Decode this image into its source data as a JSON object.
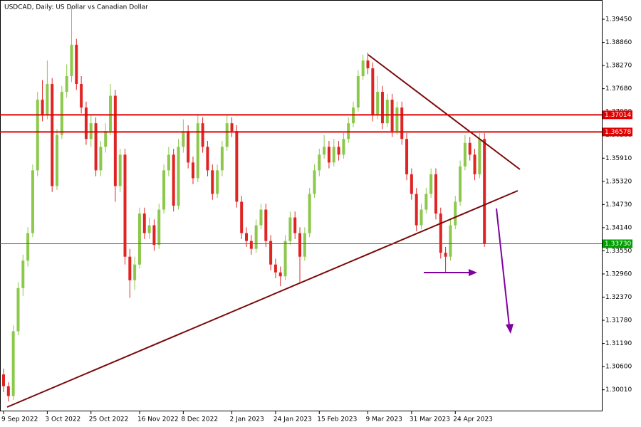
{
  "chart_data": {
    "type": "candlestick",
    "title": "USDCAD, Daily:  US Dollar vs Canadian Dollar",
    "up_color": "#8cc84b",
    "down_color": "#e02424",
    "ylim": [
      1.2946,
      1.3994
    ],
    "yticks": [
      {
        "value": 1.3945,
        "label": "1.39450"
      },
      {
        "value": 1.3886,
        "label": "1.38860"
      },
      {
        "value": 1.3827,
        "label": "1.38270"
      },
      {
        "value": 1.3768,
        "label": "1.37680"
      },
      {
        "value": 1.3709,
        "label": "1.37090"
      },
      {
        "value": 1.365,
        "label": "1.36500"
      },
      {
        "value": 1.3591,
        "label": "1.35910"
      },
      {
        "value": 1.3532,
        "label": "1.35320"
      },
      {
        "value": 1.3473,
        "label": "1.34730"
      },
      {
        "value": 1.3414,
        "label": "1.34140"
      },
      {
        "value": 1.3355,
        "label": "1.33550"
      },
      {
        "value": 1.3296,
        "label": "1.32960"
      },
      {
        "value": 1.3237,
        "label": "1.32370"
      },
      {
        "value": 1.3178,
        "label": "1.31780"
      },
      {
        "value": 1.3119,
        "label": "1.31190"
      },
      {
        "value": 1.306,
        "label": "1.30600"
      },
      {
        "value": 1.3001,
        "label": "1.30010"
      }
    ],
    "levels": [
      {
        "value": 1.37014,
        "color": "#e00000"
      },
      {
        "value": 1.36578,
        "color": "#e00000"
      },
      {
        "value": 1.3373,
        "value_label": "1.33730",
        "color": "#00a000"
      }
    ],
    "categories": [
      "9 Sep 2022",
      null,
      null,
      null,
      null,
      null,
      null,
      null,
      null,
      "3 Oct 2022",
      null,
      null,
      null,
      null,
      null,
      null,
      null,
      null,
      "25 Oct 2022",
      null,
      null,
      null,
      null,
      null,
      null,
      null,
      null,
      null,
      "16 Nov 2022",
      null,
      null,
      null,
      null,
      null,
      null,
      null,
      null,
      "8 Dec 2022",
      null,
      null,
      null,
      null,
      null,
      null,
      null,
      null,
      null,
      "2 Jan 2023",
      null,
      null,
      null,
      null,
      null,
      null,
      null,
      null,
      "24 Jan 2023",
      null,
      null,
      null,
      null,
      null,
      null,
      null,
      null,
      "15 Feb 2023",
      null,
      null,
      null,
      null,
      null,
      null,
      null,
      null,
      null,
      "9 Mar 2023",
      null,
      null,
      null,
      null,
      null,
      null,
      null,
      null,
      "31 Mar 2023",
      null,
      null,
      null,
      null,
      null,
      null,
      null,
      null,
      "24 Apr 2023",
      null,
      null,
      null,
      null,
      null,
      null
    ],
    "ohlc": [
      [
        1.304,
        1.3055,
        1.2995,
        1.301
      ],
      [
        1.301,
        1.302,
        1.2971,
        1.2985
      ],
      [
        1.2985,
        1.3165,
        1.2975,
        1.315
      ],
      [
        1.315,
        1.3275,
        1.314,
        1.326
      ],
      [
        1.326,
        1.3345,
        1.324,
        1.333
      ],
      [
        1.333,
        1.3415,
        1.3315,
        1.34
      ],
      [
        1.34,
        1.3575,
        1.339,
        1.356
      ],
      [
        1.356,
        1.376,
        1.3545,
        1.374
      ],
      [
        1.374,
        1.379,
        1.3685,
        1.37
      ],
      [
        1.37,
        1.384,
        1.369,
        1.378
      ],
      [
        1.378,
        1.3795,
        1.3505,
        1.352
      ],
      [
        1.352,
        1.3665,
        1.351,
        1.365
      ],
      [
        1.365,
        1.3775,
        1.364,
        1.376
      ],
      [
        1.376,
        1.383,
        1.3745,
        1.38
      ],
      [
        1.38,
        1.3977,
        1.3785,
        1.388
      ],
      [
        1.388,
        1.3895,
        1.3765,
        1.378
      ],
      [
        1.378,
        1.38,
        1.3705,
        1.372
      ],
      [
        1.372,
        1.3735,
        1.3625,
        1.364
      ],
      [
        1.364,
        1.37,
        1.362,
        1.368
      ],
      [
        1.368,
        1.3695,
        1.3545,
        1.356
      ],
      [
        1.356,
        1.3635,
        1.3545,
        1.362
      ],
      [
        1.362,
        1.368,
        1.3605,
        1.366
      ],
      [
        1.366,
        1.378,
        1.365,
        1.375
      ],
      [
        1.375,
        1.3765,
        1.348,
        1.352
      ],
      [
        1.352,
        1.3615,
        1.3505,
        1.36
      ],
      [
        1.36,
        1.3615,
        1.332,
        1.334
      ],
      [
        1.334,
        1.336,
        1.3235,
        1.328
      ],
      [
        1.328,
        1.334,
        1.3255,
        1.332
      ],
      [
        1.332,
        1.3465,
        1.331,
        1.345
      ],
      [
        1.345,
        1.3465,
        1.3385,
        1.34
      ],
      [
        1.34,
        1.344,
        1.3385,
        1.342
      ],
      [
        1.342,
        1.3435,
        1.3355,
        1.337
      ],
      [
        1.337,
        1.3475,
        1.336,
        1.346
      ],
      [
        1.346,
        1.3575,
        1.345,
        1.356
      ],
      [
        1.356,
        1.362,
        1.3545,
        1.36
      ],
      [
        1.36,
        1.3615,
        1.3455,
        1.347
      ],
      [
        1.347,
        1.364,
        1.346,
        1.362
      ],
      [
        1.362,
        1.369,
        1.3605,
        1.366
      ],
      [
        1.366,
        1.3675,
        1.3565,
        1.358
      ],
      [
        1.358,
        1.3595,
        1.3525,
        1.354
      ],
      [
        1.354,
        1.37,
        1.353,
        1.368
      ],
      [
        1.368,
        1.3695,
        1.3605,
        1.362
      ],
      [
        1.362,
        1.3635,
        1.3545,
        1.356
      ],
      [
        1.356,
        1.3575,
        1.3485,
        1.35
      ],
      [
        1.35,
        1.3575,
        1.349,
        1.356
      ],
      [
        1.356,
        1.3635,
        1.3545,
        1.362
      ],
      [
        1.362,
        1.37,
        1.361,
        1.368
      ],
      [
        1.368,
        1.3695,
        1.3645,
        1.366
      ],
      [
        1.366,
        1.3675,
        1.3465,
        1.348
      ],
      [
        1.348,
        1.3495,
        1.3385,
        1.34
      ],
      [
        1.34,
        1.3415,
        1.3365,
        1.338
      ],
      [
        1.338,
        1.3395,
        1.3345,
        1.336
      ],
      [
        1.336,
        1.3435,
        1.335,
        1.342
      ],
      [
        1.342,
        1.3475,
        1.341,
        1.346
      ],
      [
        1.346,
        1.3475,
        1.3365,
        1.338
      ],
      [
        1.338,
        1.3395,
        1.3305,
        1.332
      ],
      [
        1.332,
        1.3335,
        1.3285,
        1.33
      ],
      [
        1.33,
        1.3315,
        1.3265,
        1.329
      ],
      [
        1.329,
        1.3395,
        1.328,
        1.338
      ],
      [
        1.338,
        1.3455,
        1.337,
        1.344
      ],
      [
        1.344,
        1.3455,
        1.3385,
        1.34
      ],
      [
        1.34,
        1.3415,
        1.3275,
        1.334
      ],
      [
        1.334,
        1.3415,
        1.333,
        1.34
      ],
      [
        1.34,
        1.3515,
        1.339,
        1.35
      ],
      [
        1.35,
        1.3575,
        1.349,
        1.356
      ],
      [
        1.356,
        1.3615,
        1.3545,
        1.36
      ],
      [
        1.36,
        1.365,
        1.359,
        1.362
      ],
      [
        1.362,
        1.3635,
        1.3565,
        1.358
      ],
      [
        1.358,
        1.364,
        1.357,
        1.362
      ],
      [
        1.362,
        1.3635,
        1.3585,
        1.36
      ],
      [
        1.36,
        1.3655,
        1.359,
        1.364
      ],
      [
        1.364,
        1.3695,
        1.363,
        1.368
      ],
      [
        1.368,
        1.3735,
        1.367,
        1.372
      ],
      [
        1.372,
        1.3815,
        1.371,
        1.38
      ],
      [
        1.38,
        1.3855,
        1.379,
        1.384
      ],
      [
        1.384,
        1.386,
        1.3805,
        1.382
      ],
      [
        1.382,
        1.3835,
        1.3685,
        1.37
      ],
      [
        1.37,
        1.38,
        1.369,
        1.376
      ],
      [
        1.376,
        1.3775,
        1.3665,
        1.368
      ],
      [
        1.368,
        1.3755,
        1.367,
        1.374
      ],
      [
        1.374,
        1.3755,
        1.3645,
        1.366
      ],
      [
        1.366,
        1.3735,
        1.365,
        1.372
      ],
      [
        1.372,
        1.3735,
        1.3625,
        1.364
      ],
      [
        1.364,
        1.3655,
        1.3535,
        1.355
      ],
      [
        1.355,
        1.3565,
        1.3485,
        1.35
      ],
      [
        1.35,
        1.3515,
        1.3405,
        1.342
      ],
      [
        1.342,
        1.3475,
        1.341,
        1.346
      ],
      [
        1.346,
        1.3515,
        1.345,
        1.35
      ],
      [
        1.35,
        1.3565,
        1.349,
        1.355
      ],
      [
        1.355,
        1.3565,
        1.3435,
        1.345
      ],
      [
        1.345,
        1.3465,
        1.3335,
        1.335
      ],
      [
        1.335,
        1.3365,
        1.33,
        1.334
      ],
      [
        1.334,
        1.3435,
        1.333,
        1.342
      ],
      [
        1.342,
        1.3495,
        1.341,
        1.348
      ],
      [
        1.348,
        1.3585,
        1.347,
        1.357
      ],
      [
        1.357,
        1.365,
        1.356,
        1.363
      ],
      [
        1.363,
        1.3645,
        1.3585,
        1.36
      ],
      [
        1.36,
        1.3615,
        1.3535,
        1.355
      ],
      [
        1.355,
        1.3655,
        1.354,
        1.364
      ],
      [
        1.364,
        1.3655,
        1.3365,
        1.3373
      ]
    ]
  }
}
